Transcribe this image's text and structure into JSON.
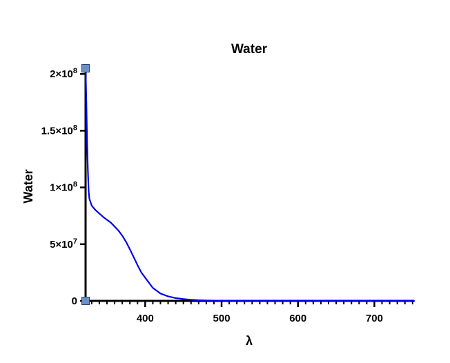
{
  "chart_data": {
    "type": "line",
    "title": "Water",
    "xlabel": "λ",
    "ylabel": "Water",
    "xlim": [
      322,
      752
    ],
    "ylim": [
      0,
      205000000
    ],
    "x_ticks": [
      400,
      500,
      600,
      700
    ],
    "x_tick_labels": [
      "400",
      "500",
      "600",
      "700"
    ],
    "y_ticks": [
      0,
      50000000,
      100000000,
      150000000,
      200000000
    ],
    "y_tick_labels": [
      {
        "base": "0",
        "exp": ""
      },
      {
        "base": "5×10",
        "exp": "7"
      },
      {
        "base": "1×10",
        "exp": "8"
      },
      {
        "base": "1.5×10",
        "exp": "8"
      },
      {
        "base": "2×10",
        "exp": "8"
      }
    ],
    "grid": false,
    "series": [
      {
        "color": "#0000ee",
        "x": [
          322,
          323,
          324,
          325,
          326,
          327,
          330,
          335,
          340,
          345,
          350,
          355,
          360,
          365,
          370,
          375,
          380,
          385,
          390,
          395,
          400,
          410,
          420,
          430,
          440,
          450,
          460,
          470,
          480,
          490,
          500,
          520,
          540,
          560,
          600,
          650,
          700,
          752
        ],
        "y": [
          205000000,
          175000000,
          140000000,
          115000000,
          97000000,
          90000000,
          84000000,
          80000000,
          77000000,
          74000000,
          71500000,
          69000000,
          65500000,
          62000000,
          57500000,
          52000000,
          45500000,
          38500000,
          31500000,
          25000000,
          20500000,
          11500000,
          6500000,
          4000000,
          2500000,
          1600000,
          1000000,
          600000,
          400000,
          250000,
          150000,
          80000,
          40000,
          20000,
          8000,
          3000,
          1000,
          500
        ]
      }
    ],
    "markers": [
      {
        "x": 322,
        "y": 205000000,
        "shape": "square",
        "color": "#6b8fc6"
      },
      {
        "x": 322,
        "y": 0,
        "shape": "square",
        "color": "#6b8fc6"
      }
    ]
  }
}
